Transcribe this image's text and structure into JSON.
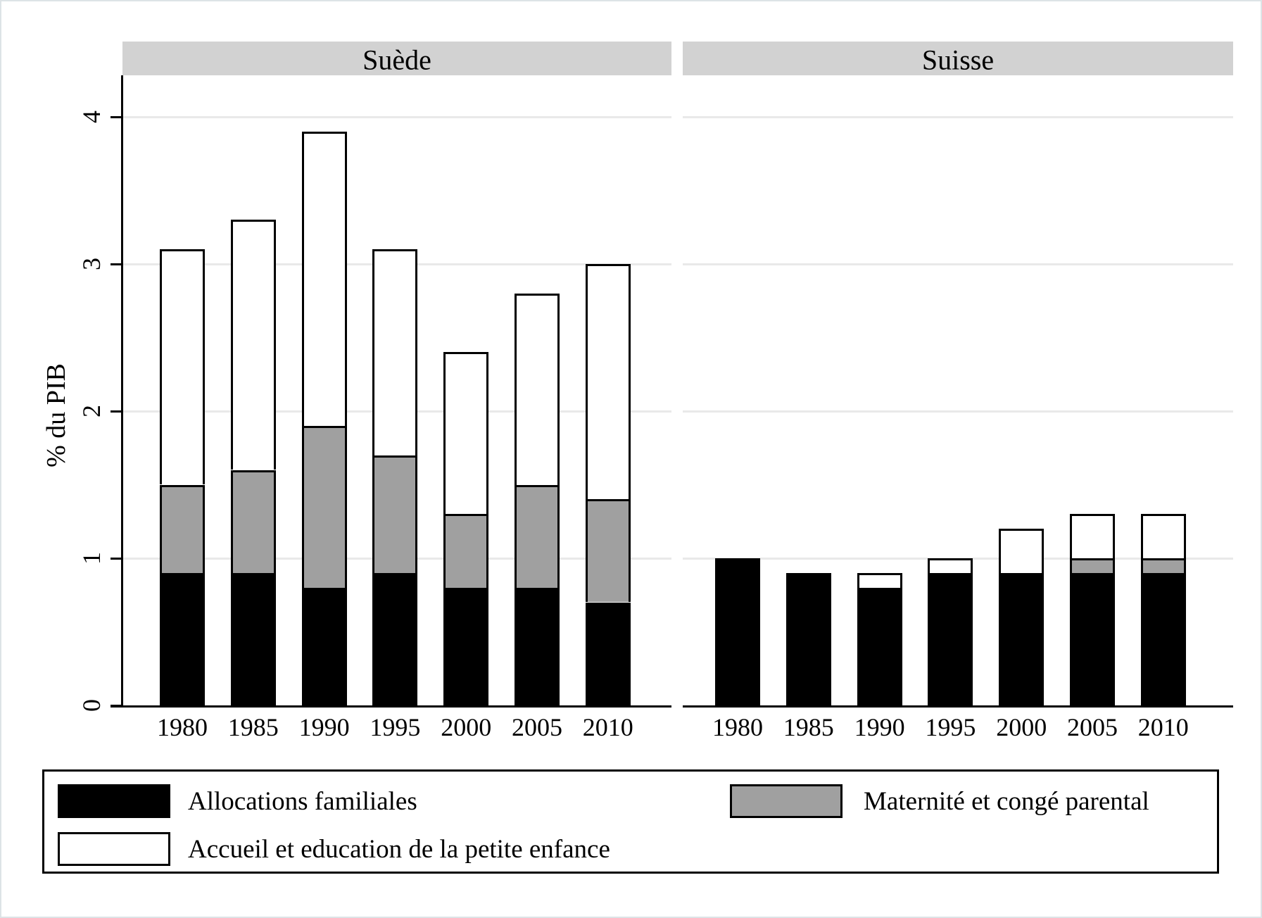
{
  "figure": {
    "ylabel": "% du PIB"
  },
  "legend": {
    "items": [
      {
        "label": "Allocations familiales",
        "color": "#000000",
        "row": 1,
        "col": 1
      },
      {
        "label": "Maternité et congé parental",
        "color": "#a0a0a0",
        "row": 1,
        "col": 2
      },
      {
        "label": "Accueil et education de la petite enfance",
        "color": "#ffffff",
        "row": 2,
        "col": 1
      }
    ]
  },
  "colors": {
    "bar_black": "#000000",
    "bar_gray": "#a0a0a0",
    "bar_white": "#ffffff",
    "panel_header_bg": "#d2d2d2",
    "gridline": "#e9e9e9",
    "axis": "#000000",
    "figure_border": "#dde3e6"
  },
  "chart_data": {
    "type": "bar",
    "stacked": true,
    "title": "",
    "ylabel": "% du PIB",
    "ylim": [
      0,
      4.3
    ],
    "yticks": [
      0,
      1,
      2,
      3,
      4
    ],
    "grid": true,
    "legend_position": "bottom",
    "categories": [
      "1980",
      "1985",
      "1990",
      "1995",
      "2000",
      "2005",
      "2010"
    ],
    "panels": [
      {
        "title": "Suède",
        "series": [
          {
            "name": "Allocations familiales",
            "color": "#000000",
            "values": [
              0.9,
              0.9,
              0.8,
              0.9,
              0.8,
              0.8,
              0.7
            ]
          },
          {
            "name": "Maternité et congé parental",
            "color": "#a0a0a0",
            "values": [
              0.6,
              0.7,
              1.1,
              0.8,
              0.5,
              0.7,
              0.7
            ]
          },
          {
            "name": "Accueil et education de la petite enfance",
            "color": "#ffffff",
            "values": [
              1.6,
              1.7,
              2.0,
              1.4,
              1.1,
              1.3,
              1.6
            ]
          }
        ],
        "stack_totals": [
          3.1,
          3.3,
          3.9,
          3.1,
          2.4,
          2.8,
          3.0
        ]
      },
      {
        "title": "Suisse",
        "series": [
          {
            "name": "Allocations familiales",
            "color": "#000000",
            "values": [
              1.0,
              0.9,
              0.8,
              0.9,
              0.9,
              0.9,
              0.9
            ]
          },
          {
            "name": "Maternité et congé parental",
            "color": "#a0a0a0",
            "values": [
              0,
              0,
              0,
              0,
              0,
              0.1,
              0.1
            ]
          },
          {
            "name": "Accueil et education de la petite enfance",
            "color": "#ffffff",
            "values": [
              0,
              0,
              0.1,
              0.1,
              0.3,
              0.3,
              0.3
            ]
          }
        ],
        "stack_totals": [
          1.0,
          0.9,
          0.9,
          1.0,
          1.2,
          1.3,
          1.3
        ]
      }
    ]
  }
}
